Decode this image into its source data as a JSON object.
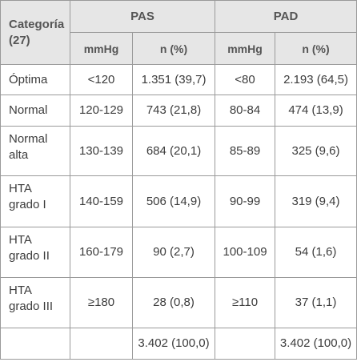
{
  "header": {
    "category_label": [
      "Categoría",
      "(27)"
    ],
    "pas_label": "PAS",
    "pad_label": "PAD",
    "sub_mmhg": "mmHg",
    "sub_n": "n (%)"
  },
  "rows": [
    {
      "category": [
        "Óptima"
      ],
      "pas_mmhg": "<120",
      "pas_n": "1.351 (39,7)",
      "pad_mmhg": "<80",
      "pad_n": "2.193 (64,5)"
    },
    {
      "category": [
        "Normal"
      ],
      "pas_mmhg": "120-129",
      "pas_n": "743 (21,8)",
      "pad_mmhg": "80-84",
      "pad_n": "474 (13,9)"
    },
    {
      "category": [
        "Normal",
        "alta"
      ],
      "pas_mmhg": "130-139",
      "pas_n": "684 (20,1)",
      "pad_mmhg": "85-89",
      "pad_n": "325 (9,6)"
    },
    {
      "category": [
        "HTA",
        "grado I"
      ],
      "pas_mmhg": "140-159",
      "pas_n": "506 (14,9)",
      "pad_mmhg": "90-99",
      "pad_n": "319 (9,4)"
    },
    {
      "category": [
        "HTA",
        "grado II"
      ],
      "pas_mmhg": "160-179",
      "pas_n": "90 (2,7)",
      "pad_mmhg": "100-109",
      "pad_n": "54 (1,6)"
    },
    {
      "category": [
        "HTA",
        "grado III"
      ],
      "pas_mmhg": "≥180",
      "pas_n": "28 (0,8)",
      "pad_mmhg": "≥110",
      "pad_n": "37 (1,1)"
    }
  ],
  "totals": {
    "pas_n": "3.402 (100,0)",
    "pad_n": "3.402 (100,0)"
  }
}
